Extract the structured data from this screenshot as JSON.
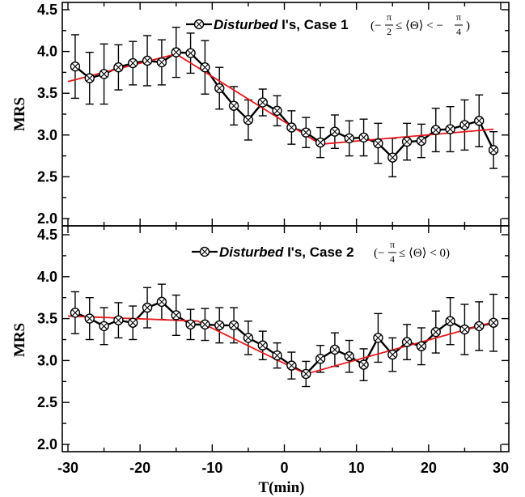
{
  "chart_data": [
    {
      "type": "line",
      "panel": "top",
      "ylabel": "MRS",
      "xlim": [
        -30,
        30
      ],
      "ylim": [
        2.0,
        4.5
      ],
      "yticks": [
        "2.0",
        "2.5",
        "3.0",
        "3.5",
        "4.0",
        "4.5"
      ],
      "legend": {
        "placement": "top-right",
        "italic_part": "Disturbed",
        "rest": " I's, Case 1",
        "condition": {
          "open": "(−",
          "f1_num": "π",
          "f1_den": "2",
          "middle": "≤ ⟨Θ⟩ < −",
          "f2_num": "π",
          "f2_den": "4",
          "close": ")"
        }
      },
      "series": [
        {
          "marker": "circle-x",
          "color": "#000000",
          "x": [
            -29,
            -27,
            -25,
            -23,
            -21,
            -19,
            -17,
            -15,
            -13,
            -11,
            -9,
            -7,
            -5,
            -3,
            -1,
            1,
            3,
            5,
            7,
            9,
            11,
            13,
            15,
            17,
            19,
            21,
            23,
            25,
            27,
            29
          ],
          "y": [
            3.82,
            3.68,
            3.73,
            3.81,
            3.86,
            3.89,
            3.87,
            3.99,
            3.98,
            3.81,
            3.56,
            3.35,
            3.18,
            3.39,
            3.29,
            3.09,
            3.03,
            2.91,
            3.04,
            2.96,
            2.97,
            2.9,
            2.73,
            2.92,
            2.93,
            3.06,
            3.07,
            3.12,
            3.17,
            2.82
          ],
          "err": [
            0.38,
            0.31,
            0.36,
            0.27,
            0.26,
            0.3,
            0.27,
            0.3,
            0.24,
            0.32,
            0.25,
            0.23,
            0.24,
            0.16,
            0.18,
            0.2,
            0.18,
            0.18,
            0.2,
            0.21,
            0.22,
            0.24,
            0.23,
            0.22,
            0.2,
            0.26,
            0.27,
            0.3,
            0.31,
            0.22
          ]
        },
        {
          "style": "fit",
          "color": "#e8181c",
          "x": [
            -30,
            -15,
            5,
            29
          ],
          "y": [
            3.64,
            3.97,
            2.89,
            3.07
          ]
        }
      ]
    },
    {
      "type": "line",
      "panel": "bottom",
      "ylabel": "MRS",
      "xlabel": "T(min)",
      "xlim": [
        -30,
        30
      ],
      "ylim": [
        2.0,
        4.5
      ],
      "yticks": [
        "2.0",
        "2.5",
        "3.0",
        "3.5",
        "4.0",
        "4.5"
      ],
      "xticks": [
        "-30",
        "-20",
        "-10",
        "0",
        "10",
        "20",
        "30"
      ],
      "legend": {
        "placement": "top-right",
        "italic_part": "Disturbed",
        "rest": " I's, Case 2",
        "condition": {
          "open": "(−",
          "f1_num": "π",
          "f1_den": "4",
          "middle": "≤ ⟨Θ⟩ < 0)"
        }
      },
      "series": [
        {
          "marker": "circle-x",
          "color": "#000000",
          "x": [
            -29,
            -27,
            -25,
            -23,
            -21,
            -19,
            -17,
            -15,
            -13,
            -11,
            -9,
            -7,
            -5,
            -3,
            -1,
            1,
            3,
            5,
            7,
            9,
            11,
            13,
            15,
            17,
            19,
            21,
            23,
            25,
            27,
            29
          ],
          "y": [
            3.57,
            3.5,
            3.41,
            3.48,
            3.45,
            3.63,
            3.7,
            3.54,
            3.43,
            3.43,
            3.42,
            3.42,
            3.27,
            3.18,
            3.06,
            2.94,
            2.84,
            3.02,
            3.13,
            3.05,
            2.95,
            3.27,
            3.07,
            3.22,
            3.17,
            3.34,
            3.47,
            3.37,
            3.41,
            3.45
          ],
          "err": [
            0.25,
            0.25,
            0.22,
            0.21,
            0.2,
            0.24,
            0.21,
            0.24,
            0.18,
            0.19,
            0.21,
            0.21,
            0.2,
            0.17,
            0.15,
            0.16,
            0.15,
            0.16,
            0.2,
            0.19,
            0.19,
            0.29,
            0.2,
            0.21,
            0.22,
            0.25,
            0.28,
            0.3,
            0.29,
            0.34
          ]
        },
        {
          "style": "fit",
          "color": "#e8181c",
          "x": [
            -30,
            -12,
            3,
            29
          ],
          "y": [
            3.53,
            3.47,
            2.84,
            3.46
          ]
        }
      ]
    }
  ]
}
